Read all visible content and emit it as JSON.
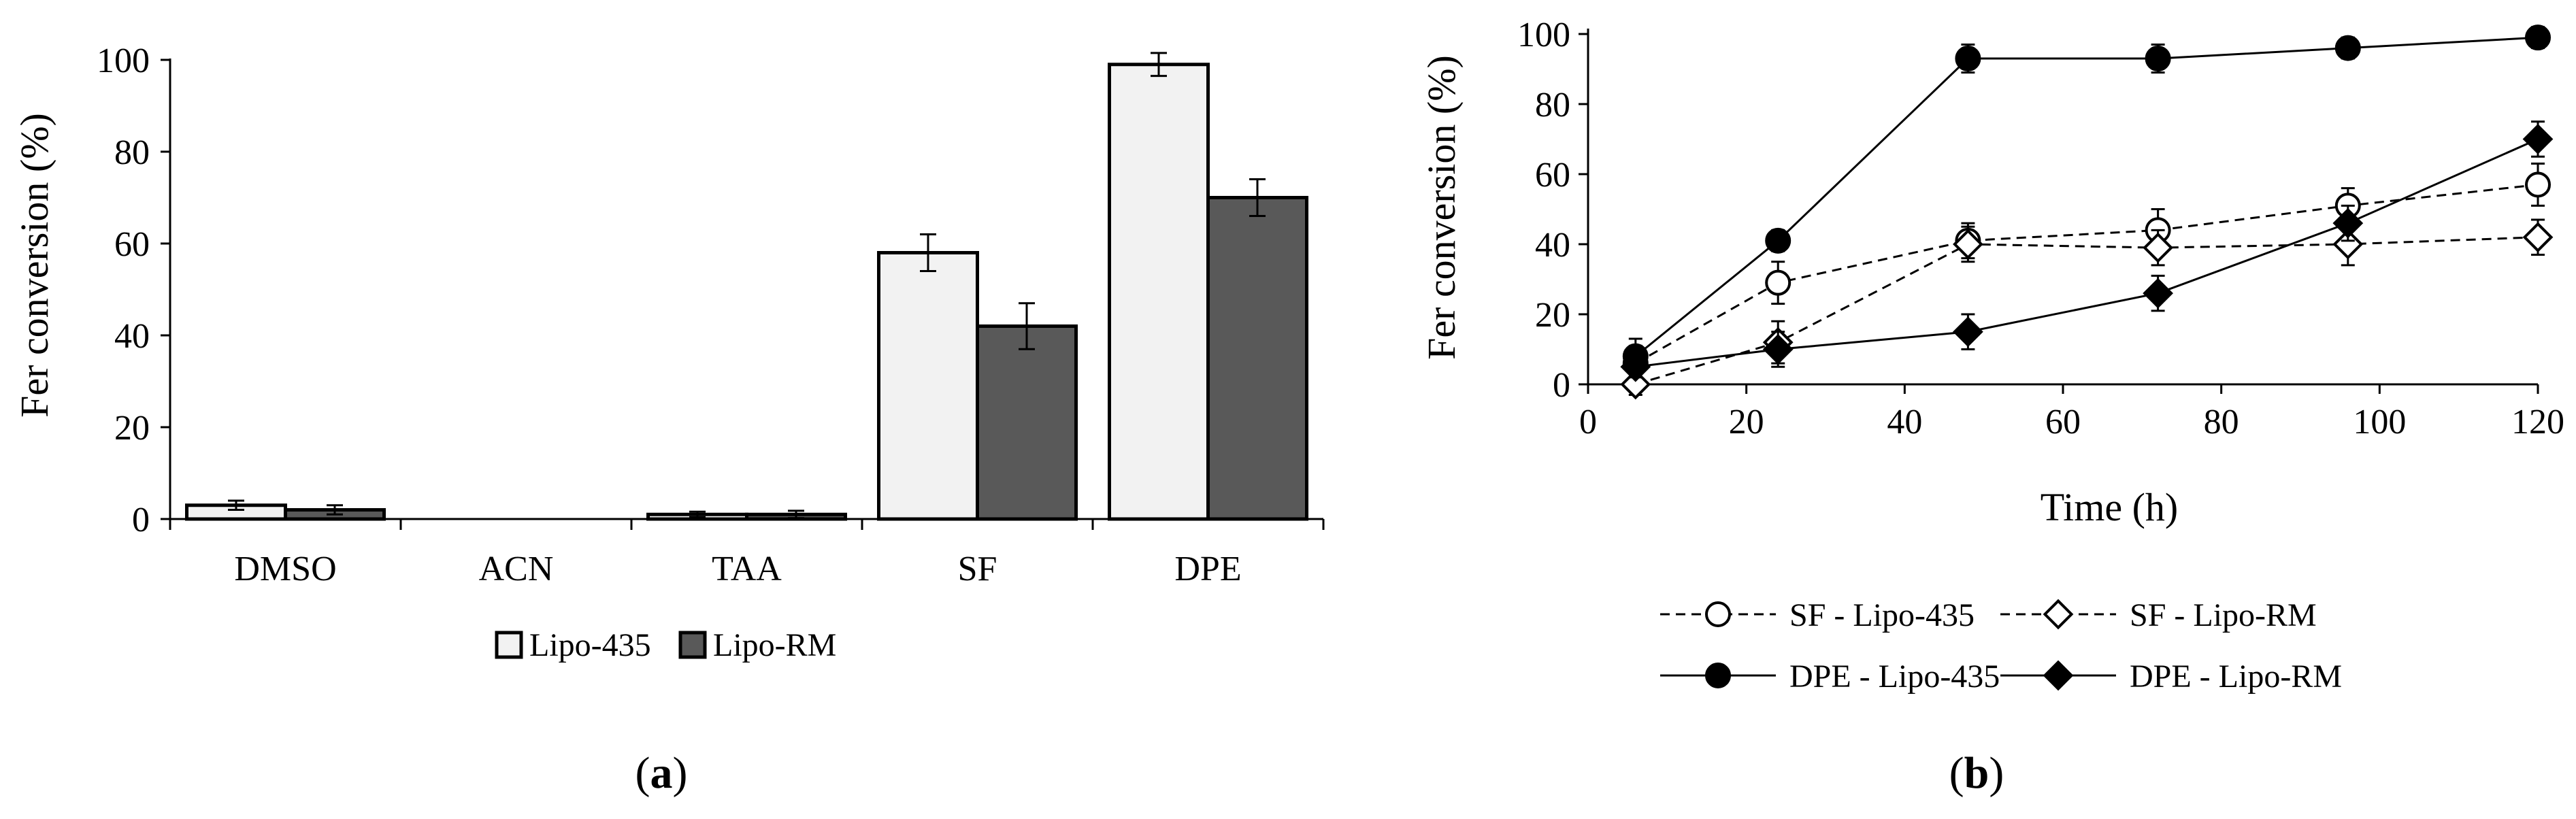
{
  "chart_data": [
    {
      "type": "bar",
      "panel_label": "a",
      "title": "",
      "xlabel": "",
      "ylabel": "Fer conversion (%)",
      "ylim": [
        0,
        100
      ],
      "yticks": [
        0,
        20,
        40,
        60,
        80,
        100
      ],
      "grid": false,
      "legend_position": "bottom",
      "categories": [
        "DMSO",
        "ACN",
        "TAA",
        "SF",
        "DPE"
      ],
      "series": [
        {
          "name": "Lipo-435",
          "color": "#f2f2f2",
          "values": [
            3,
            0,
            1,
            58,
            99
          ],
          "errors": [
            1,
            0,
            0.6,
            4,
            2.5
          ]
        },
        {
          "name": "Lipo-RM",
          "color": "#595959",
          "values": [
            2,
            0,
            1,
            42,
            70
          ],
          "errors": [
            1,
            0,
            0.8,
            5,
            4
          ]
        }
      ]
    },
    {
      "type": "line",
      "panel_label": "b",
      "title": "",
      "xlabel": "Time (h)",
      "ylabel": "Fer conversion (%)",
      "xlim": [
        0,
        120
      ],
      "ylim": [
        0,
        100
      ],
      "xticks": [
        0,
        20,
        40,
        60,
        80,
        100,
        120
      ],
      "yticks": [
        0,
        20,
        40,
        60,
        80,
        100
      ],
      "grid": false,
      "legend_position": "bottom",
      "x": [
        6,
        24,
        48,
        72,
        96,
        120
      ],
      "series": [
        {
          "name": "SF - Lipo-435",
          "marker": "circle-open",
          "dashed": true,
          "values": [
            6,
            29,
            41,
            44,
            51,
            57
          ],
          "errors": [
            5,
            6,
            5,
            6,
            5,
            6
          ]
        },
        {
          "name": "SF - Lipo-RM",
          "marker": "diamond-open",
          "dashed": true,
          "values": [
            0,
            12,
            40,
            39,
            40,
            42
          ],
          "errors": [
            3,
            6,
            5,
            5,
            6,
            5
          ]
        },
        {
          "name": "DPE - Lipo-435",
          "marker": "circle-filled",
          "dashed": false,
          "values": [
            8,
            41,
            93,
            93,
            96,
            99
          ],
          "errors": [
            5,
            3,
            4,
            4,
            3,
            3
          ]
        },
        {
          "name": "DPE - Lipo-RM",
          "marker": "diamond-filled",
          "dashed": false,
          "values": [
            5,
            10,
            15,
            26,
            46,
            70
          ],
          "errors": [
            3,
            5,
            5,
            5,
            5,
            5
          ]
        }
      ]
    }
  ]
}
